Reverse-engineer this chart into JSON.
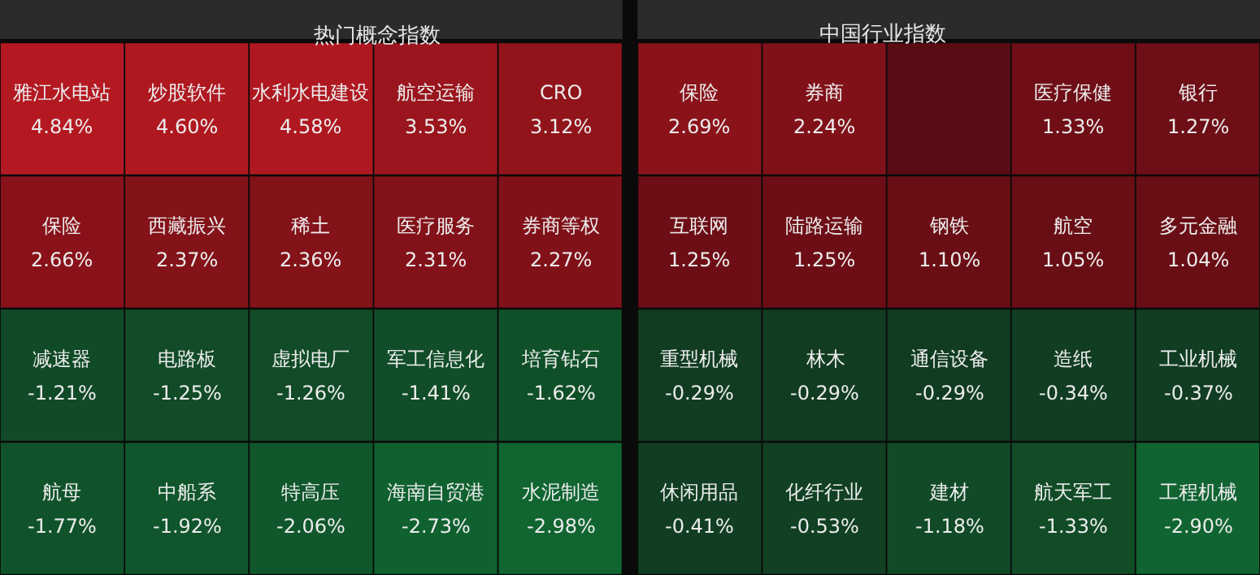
{
  "chart_data": [
    {
      "type": "other",
      "title": "热门概念指数",
      "categories": [
        "雅江水电站",
        "炒股软件",
        "水利水电建设",
        "航空运输",
        "CRO",
        "保险",
        "西藏振兴",
        "稀土",
        "医疗服务",
        "券商等权",
        "减速器",
        "电路板",
        "虚拟电厂",
        "军工信息化",
        "培育钻石",
        "航母",
        "中船系",
        "特高压",
        "海南自贸港",
        "水泥制造"
      ],
      "values": [
        4.84,
        4.6,
        4.58,
        3.53,
        3.12,
        2.66,
        2.37,
        2.36,
        2.31,
        2.27,
        -1.21,
        -1.25,
        -1.26,
        -1.41,
        -1.62,
        -1.77,
        -1.92,
        -2.06,
        -2.73,
        -2.98
      ],
      "value_labels": [
        "4.84%",
        "4.60%",
        "4.58%",
        "3.53%",
        "3.12%",
        "2.66%",
        "2.37%",
        "2.36%",
        "2.31%",
        "2.27%",
        "-1.21%",
        "-1.25%",
        "-1.26%",
        "-1.41%",
        "-1.62%",
        "-1.77%",
        "-1.92%",
        "-2.06%",
        "-2.73%",
        "-2.98%"
      ]
    },
    {
      "type": "other",
      "title": "中国行业指数",
      "categories": [
        "保险",
        "券商",
        null,
        "医疗保健",
        "银行",
        "互联网",
        "陆路运输",
        "钢铁",
        "航空",
        "多元金融",
        "重型机械",
        "林木",
        "通信设备",
        "造纸",
        "工业机械",
        "休闲用品",
        "化纤行业",
        "建材",
        "航天军工",
        "工程机械"
      ],
      "values": [
        2.69,
        2.24,
        null,
        1.33,
        1.27,
        1.25,
        1.25,
        1.1,
        1.05,
        1.04,
        -0.29,
        -0.29,
        -0.29,
        -0.34,
        -0.37,
        -0.41,
        -0.53,
        -1.18,
        -1.33,
        -2.9
      ],
      "value_labels": [
        "2.69%",
        "2.24%",
        null,
        "1.33%",
        "1.27%",
        "1.25%",
        "1.25%",
        "1.10%",
        "1.05%",
        "1.04%",
        "-0.29%",
        "-0.29%",
        "-0.29%",
        "-0.34%",
        "-0.37%",
        "-0.41%",
        "-0.53%",
        "-1.18%",
        "-1.33%",
        "-2.90%"
      ]
    }
  ]
}
